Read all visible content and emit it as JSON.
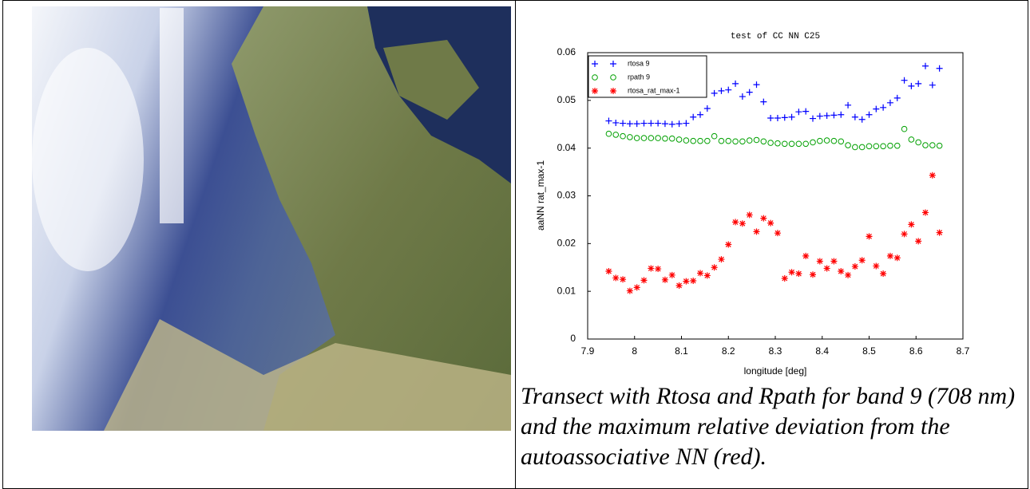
{
  "chart_data": {
    "type": "scatter",
    "title": "test of CC NN C25",
    "x_label": "longitude [deg]",
    "y_label": "aaNN rat_max-1",
    "x": [
      7.945,
      7.96,
      7.975,
      7.99,
      8.005,
      8.02,
      8.035,
      8.05,
      8.065,
      8.08,
      8.095,
      8.11,
      8.125,
      8.14,
      8.155,
      8.17,
      8.185,
      8.2,
      8.215,
      8.23,
      8.245,
      8.26,
      8.275,
      8.29,
      8.305,
      8.32,
      8.335,
      8.35,
      8.365,
      8.38,
      8.395,
      8.41,
      8.425,
      8.44,
      8.455,
      8.47,
      8.485,
      8.5,
      8.515,
      8.53,
      8.545,
      8.56,
      8.575,
      8.59,
      8.605,
      8.62,
      8.635,
      8.65
    ],
    "series": [
      {
        "name": "rtosa 9",
        "color": "#0000ff",
        "marker": "plus",
        "values": [
          0.0457,
          0.0453,
          0.0452,
          0.0451,
          0.0451,
          0.0452,
          0.0452,
          0.0452,
          0.0451,
          0.045,
          0.0451,
          0.0452,
          0.0465,
          0.047,
          0.0483,
          0.0515,
          0.052,
          0.0522,
          0.0535,
          0.0508,
          0.0517,
          0.0533,
          0.0497,
          0.0463,
          0.0463,
          0.0464,
          0.0465,
          0.0476,
          0.0477,
          0.0462,
          0.0467,
          0.0468,
          0.0469,
          0.047,
          0.049,
          0.0465,
          0.046,
          0.047,
          0.0482,
          0.0485,
          0.0495,
          0.0505,
          0.0542,
          0.053,
          0.0535,
          0.0572,
          0.0532,
          0.0567
        ]
      },
      {
        "name": "rpath 9",
        "color": "#00a000",
        "marker": "circle",
        "values": [
          0.043,
          0.0428,
          0.0425,
          0.0423,
          0.0421,
          0.0421,
          0.0421,
          0.0421,
          0.042,
          0.042,
          0.0418,
          0.0416,
          0.0415,
          0.0415,
          0.0415,
          0.0425,
          0.0415,
          0.0415,
          0.0414,
          0.0414,
          0.0416,
          0.0417,
          0.0414,
          0.0411,
          0.041,
          0.0409,
          0.0409,
          0.0409,
          0.0409,
          0.0412,
          0.0415,
          0.0416,
          0.0415,
          0.0414,
          0.0406,
          0.0402,
          0.0402,
          0.0404,
          0.0404,
          0.0404,
          0.0405,
          0.0405,
          0.044,
          0.0418,
          0.0412,
          0.0406,
          0.0406,
          0.0405
        ]
      },
      {
        "name": "rtosa_rat_max-1",
        "color": "#ff0000",
        "marker": "star",
        "values": [
          0.0142,
          0.0128,
          0.0125,
          0.0101,
          0.0108,
          0.0123,
          0.0148,
          0.0147,
          0.0124,
          0.0134,
          0.0112,
          0.0121,
          0.0122,
          0.0138,
          0.0133,
          0.015,
          0.0167,
          0.0198,
          0.0245,
          0.0242,
          0.026,
          0.0225,
          0.0253,
          0.0243,
          0.0222,
          0.0127,
          0.014,
          0.0137,
          0.0174,
          0.0135,
          0.0163,
          0.0148,
          0.0163,
          0.0142,
          0.0134,
          0.0152,
          0.0165,
          0.0215,
          0.0153,
          0.0137,
          0.0174,
          0.017,
          0.022,
          0.024,
          0.0205,
          0.0265,
          0.0343,
          0.0223
        ]
      }
    ],
    "xlim": [
      7.9,
      8.7
    ],
    "xticks": [
      7.9,
      8,
      8.1,
      8.2,
      8.3,
      8.4,
      8.5,
      8.6,
      8.7
    ],
    "ylim": [
      0,
      0.06
    ],
    "yticks": [
      0,
      0.01,
      0.02,
      0.03,
      0.04,
      0.05,
      0.06
    ],
    "grid": false,
    "legend": "upper left"
  },
  "caption": "Transect with Rtosa and Rpath for band 9 (708 nm) and the maximum relative deviation from the autoassociative NN (red)."
}
